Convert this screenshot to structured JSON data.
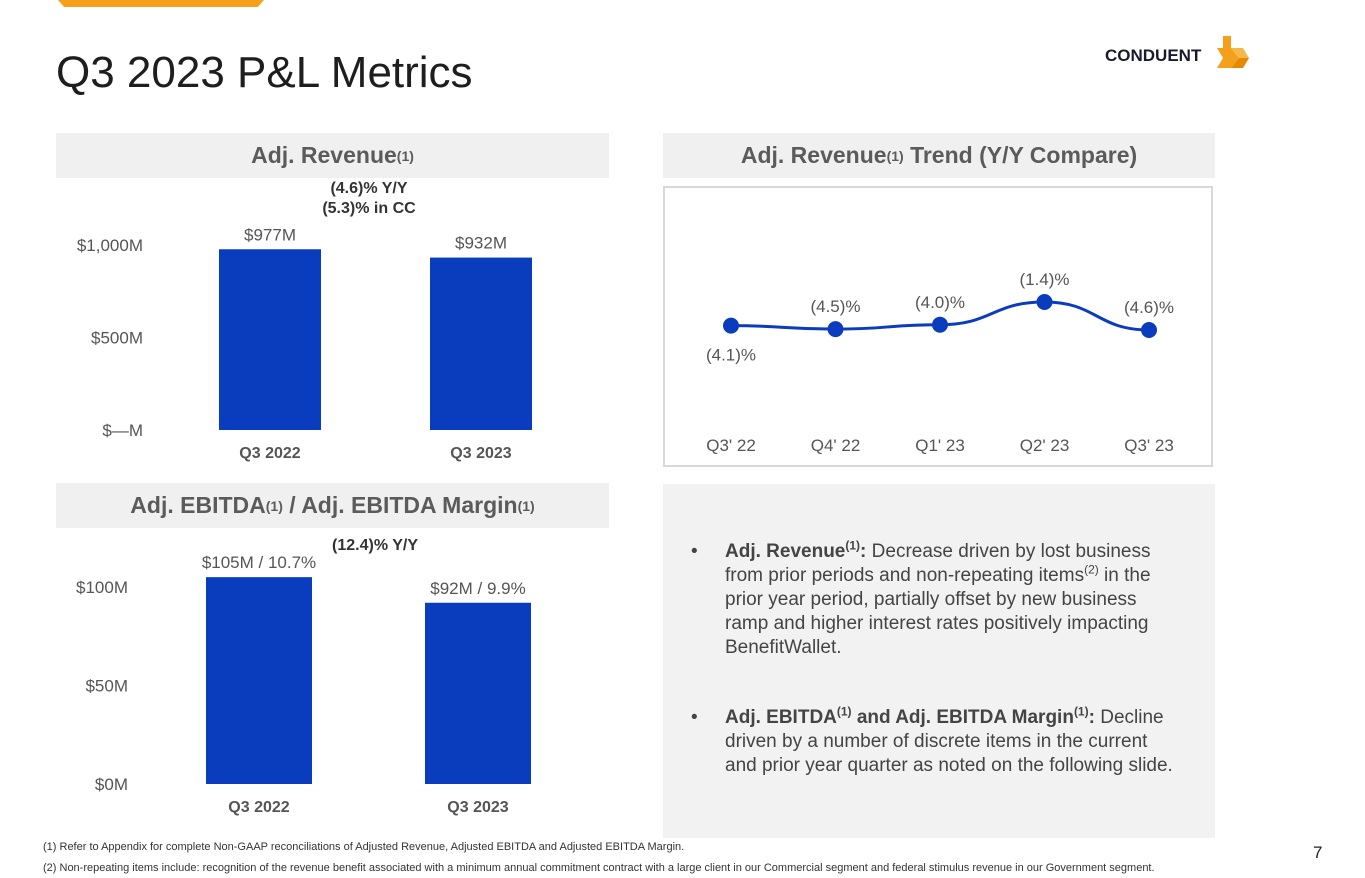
{
  "slide": {
    "title": "Q3 2023 P&L Metrics",
    "logo_text": "CONDUENT",
    "page_number": "7"
  },
  "colors": {
    "bar": "#0a3dbd",
    "accent": "#f5a01a",
    "line": "#0a3dbd"
  },
  "panels": {
    "revenue": {
      "title": "Adj. Revenue",
      "sup": "(1)"
    },
    "trend": {
      "title": "Adj. Revenue",
      "sup": "(1)",
      "title_suffix": " Trend (Y/Y Compare)"
    },
    "ebitda": {
      "title_a": "Adj. EBITDA",
      "sup_a": "(1)",
      "title_b": " / Adj. EBITDA Margin",
      "sup_b": "(1)"
    }
  },
  "chart_data": [
    {
      "type": "bar",
      "title": "Adj. Revenue(1)",
      "categories": [
        "Q3 2022",
        "Q3 2023"
      ],
      "values": [
        977,
        932
      ],
      "data_labels": [
        "$977M",
        "$932M"
      ],
      "ytick_values": [
        0,
        500,
        1000
      ],
      "ytick_labels": [
        "$—M",
        "$500M",
        "$1,000M"
      ],
      "ylim": [
        0,
        1000
      ],
      "annotation": [
        "(4.6)% Y/Y",
        "(5.3)% in CC"
      ],
      "xlabel": "",
      "ylabel": ""
    },
    {
      "type": "line",
      "title": "Adj. Revenue(1) Trend (Y/Y Compare)",
      "categories": [
        "Q3' 22",
        "Q4' 22",
        "Q1' 23",
        "Q2' 23",
        "Q3' 23"
      ],
      "values": [
        -4.1,
        -4.5,
        -4.0,
        -1.4,
        -4.6
      ],
      "data_labels": [
        "(4.1)%",
        "(4.5)%",
        "(4.0)%",
        "(1.4)%",
        "(4.6)%"
      ],
      "label_positions": [
        "below",
        "above",
        "above",
        "above",
        "above"
      ],
      "xlabel": "",
      "ylabel": ""
    },
    {
      "type": "bar",
      "title": "Adj. EBITDA(1) / Adj. EBITDA Margin(1)",
      "categories": [
        "Q3 2022",
        "Q3 2023"
      ],
      "values": [
        105,
        92
      ],
      "margins": [
        10.7,
        9.9
      ],
      "data_labels": [
        "$105M / 10.7%",
        "$92M / 9.9%"
      ],
      "ytick_values": [
        0,
        50,
        100
      ],
      "ytick_labels": [
        "$0M",
        "$50M",
        "$100M"
      ],
      "ylim": [
        0,
        100
      ],
      "annotation": [
        "(12.4)% Y/Y"
      ],
      "xlabel": "",
      "ylabel": ""
    }
  ],
  "bullets": [
    {
      "bullet": "•",
      "bold": "Adj. Revenue",
      "sup": "(1)",
      "colon": ":",
      "text_a": " Decrease driven by lost business from prior periods and non-repeating items",
      "sup2": "(2)",
      "text_b": " in the prior year period, partially offset by new business ramp and higher interest rates positively impacting BenefitWallet."
    },
    {
      "bullet": "•",
      "bold": "Adj. EBITDA",
      "sup": "(1)",
      "bold2": " and Adj. EBITDA Margin",
      "sup3": "(1)",
      "colon": ":",
      "text_a": " Decline driven by a number of discrete items in the current and prior year quarter as noted on the following slide."
    }
  ],
  "footnotes": [
    "(1) Refer to Appendix for complete Non-GAAP reconciliations of Adjusted Revenue, Adjusted EBITDA and Adjusted EBITDA Margin.",
    "(2) Non-repeating items include: recognition of the revenue benefit associated with a minimum annual commitment contract with a large client in our Commercial segment and federal stimulus revenue in our Government segment."
  ]
}
